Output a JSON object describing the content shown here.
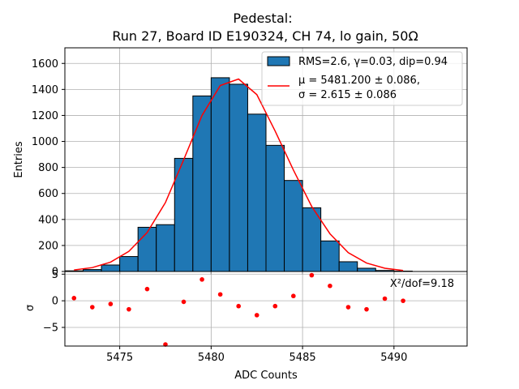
{
  "title": {
    "line1": "Pedestal:",
    "line2": "Run 27, Board ID E190324, CH 74, lo gain, 50Ω"
  },
  "legend": {
    "hist_label": "RMS=2.6, γ=0.03, dip=0.94",
    "fit_label_line1": "μ = 5481.200 ± 0.086,",
    "fit_label_line2": "σ = 2.615 ± 0.086",
    "placement": "top-right"
  },
  "colors": {
    "bar": "#1f77b4",
    "fit": "#ff0000",
    "residual": "#ff0000",
    "grid": "#b0b0b0"
  },
  "chart_data": [
    {
      "type": "bar",
      "panel": "top",
      "xlabel": "",
      "ylabel": "Entries",
      "xlim": [
        5472,
        5494
      ],
      "ylim": [
        0,
        1720
      ],
      "grid": true,
      "yticks": [
        0,
        200,
        400,
        600,
        800,
        1000,
        1200,
        1400,
        1600
      ],
      "bin_edges": [
        5472,
        5473,
        5474,
        5475,
        5476,
        5477,
        5478,
        5479,
        5480,
        5481,
        5482,
        5483,
        5484,
        5485,
        5486,
        5487,
        5488,
        5489,
        5490,
        5491
      ],
      "counts": [
        5,
        15,
        50,
        115,
        340,
        360,
        870,
        1350,
        1490,
        1440,
        1210,
        970,
        700,
        490,
        235,
        75,
        25,
        8,
        3
      ],
      "series": [
        {
          "name": "RMS=2.6, γ=0.03, dip=0.94",
          "kind": "histogram"
        },
        {
          "name": "μ = 5481.200 ± 0.086, σ = 2.615 ± 0.086",
          "kind": "fit-line",
          "x": [
            5472.5,
            5473.5,
            5474.5,
            5475.5,
            5476.5,
            5477.5,
            5478.5,
            5479.5,
            5480.5,
            5481.5,
            5482.5,
            5483.5,
            5484.5,
            5485.5,
            5486.5,
            5487.5,
            5488.5,
            5489.5,
            5490.5
          ],
          "y": [
            12,
            30,
            72,
            155,
            300,
            530,
            860,
            1200,
            1430,
            1480,
            1360,
            1080,
            780,
            500,
            290,
            145,
            65,
            25,
            8
          ]
        }
      ]
    },
    {
      "type": "scatter",
      "panel": "bottom",
      "xlabel": "ADC Counts",
      "ylabel": "σ",
      "xlim": [
        5472,
        5494
      ],
      "ylim": [
        -8.5,
        5.5
      ],
      "grid": true,
      "xticks": [
        5475,
        5480,
        5485,
        5490
      ],
      "yticks": [
        -5,
        0,
        5
      ],
      "annotation": "X²/dof=9.18",
      "series": [
        {
          "name": "residuals",
          "x": [
            5472.5,
            5473.5,
            5474.5,
            5475.5,
            5476.5,
            5477.5,
            5478.5,
            5479.5,
            5480.5,
            5481.5,
            5482.5,
            5483.5,
            5484.5,
            5485.5,
            5486.5,
            5487.5,
            5488.5,
            5489.5,
            5490.5
          ],
          "y": [
            0.5,
            -1.2,
            -0.6,
            -1.6,
            2.2,
            -8.2,
            -0.2,
            4.0,
            1.2,
            -1.0,
            -2.7,
            -1.0,
            0.9,
            4.8,
            2.8,
            -1.2,
            -1.6,
            0.4,
            0.0
          ]
        }
      ]
    }
  ]
}
